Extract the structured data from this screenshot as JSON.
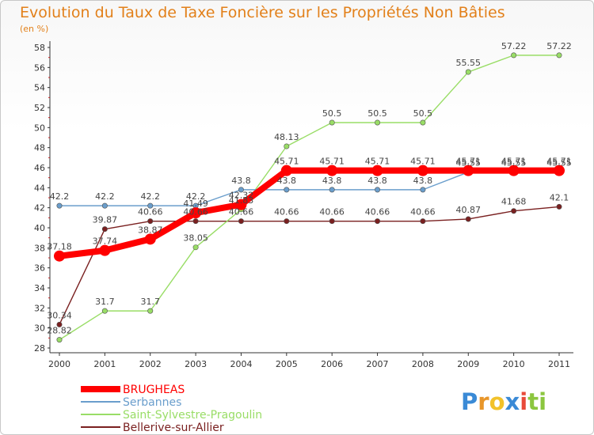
{
  "chart_data": {
    "type": "line",
    "title": "Evolution du Taux de Taxe Foncière sur les Propriétés Non Bâties",
    "subtitle": "(en %)",
    "x": [
      "2000",
      "2001",
      "2002",
      "2003",
      "2004",
      "2005",
      "2006",
      "2007",
      "2008",
      "2009",
      "2010",
      "2011"
    ],
    "ylim": [
      28,
      58
    ],
    "yticks": [
      "28",
      "30",
      "32",
      "34",
      "36",
      "38",
      "40",
      "42",
      "44",
      "46",
      "48",
      "50",
      "52",
      "54",
      "56",
      "58"
    ],
    "grid": false,
    "legend_position": "bottom-left",
    "series": [
      {
        "name": "Bellerive-sur-Allier",
        "color": "#7a2020",
        "values": [
          30.34,
          39.87,
          40.66,
          40.66,
          40.66,
          40.66,
          40.66,
          40.66,
          40.66,
          40.87,
          41.68,
          42.1
        ],
        "labels": [
          "30.34",
          "39.87",
          "40.66",
          "40.66",
          "40.66",
          "40.66",
          "40.66",
          "40.66",
          "40.66",
          "40.87",
          "41.68",
          "42.1"
        ]
      },
      {
        "name": "Saint-Sylvestre-Pragoulin",
        "color": "#99dd66",
        "values": [
          28.82,
          31.7,
          31.7,
          38.05,
          41.83,
          48.13,
          50.5,
          50.5,
          50.5,
          55.55,
          57.22,
          57.22
        ],
        "labels": [
          "28.82",
          "31.7",
          "31.7",
          "38.05",
          "41.83",
          "48.13",
          "50.5",
          "50.5",
          "50.5",
          "55.55",
          "57.22",
          "57.22"
        ]
      },
      {
        "name": "Serbannes",
        "color": "#6a9ecc",
        "values": [
          42.2,
          42.2,
          42.2,
          42.2,
          43.8,
          43.8,
          43.8,
          43.8,
          43.8,
          45.55,
          45.55,
          45.55
        ],
        "labels": [
          "42.2",
          "42.2",
          "42.2",
          "42.2",
          "43.8",
          "43.8",
          "43.8",
          "43.8",
          "43.8",
          "45.55",
          "45.55",
          "45.55"
        ]
      },
      {
        "name": "BRUGHEAS",
        "color": "#ff0000",
        "values": [
          37.18,
          37.74,
          38.87,
          41.49,
          42.32,
          45.71,
          45.71,
          45.71,
          45.71,
          45.71,
          45.71,
          45.71
        ],
        "labels": [
          "37.18",
          "37.74",
          "38.87",
          "41.49",
          "42.32",
          "45.71",
          "45.71",
          "45.71",
          "45.71",
          "45.71",
          "45.71",
          "45.71"
        ]
      }
    ],
    "legend": [
      {
        "name": "BRUGHEAS",
        "color": "#ff0000"
      },
      {
        "name": "Serbannes",
        "color": "#6a9ecc"
      },
      {
        "name": "Saint-Sylvestre-Pragoulin",
        "color": "#99dd66"
      },
      {
        "name": "Bellerive-sur-Allier",
        "color": "#7a2020"
      }
    ]
  },
  "logo": {
    "text": "Proxiti",
    "letters": [
      "P",
      "r",
      "o",
      "x",
      "i",
      "t",
      "i"
    ],
    "colors": [
      "#3a8ad6",
      "#e8962a",
      "#f2c22a",
      "#3a8ad6",
      "#e84a3a",
      "#8cc63f",
      "#8cc63f"
    ]
  }
}
